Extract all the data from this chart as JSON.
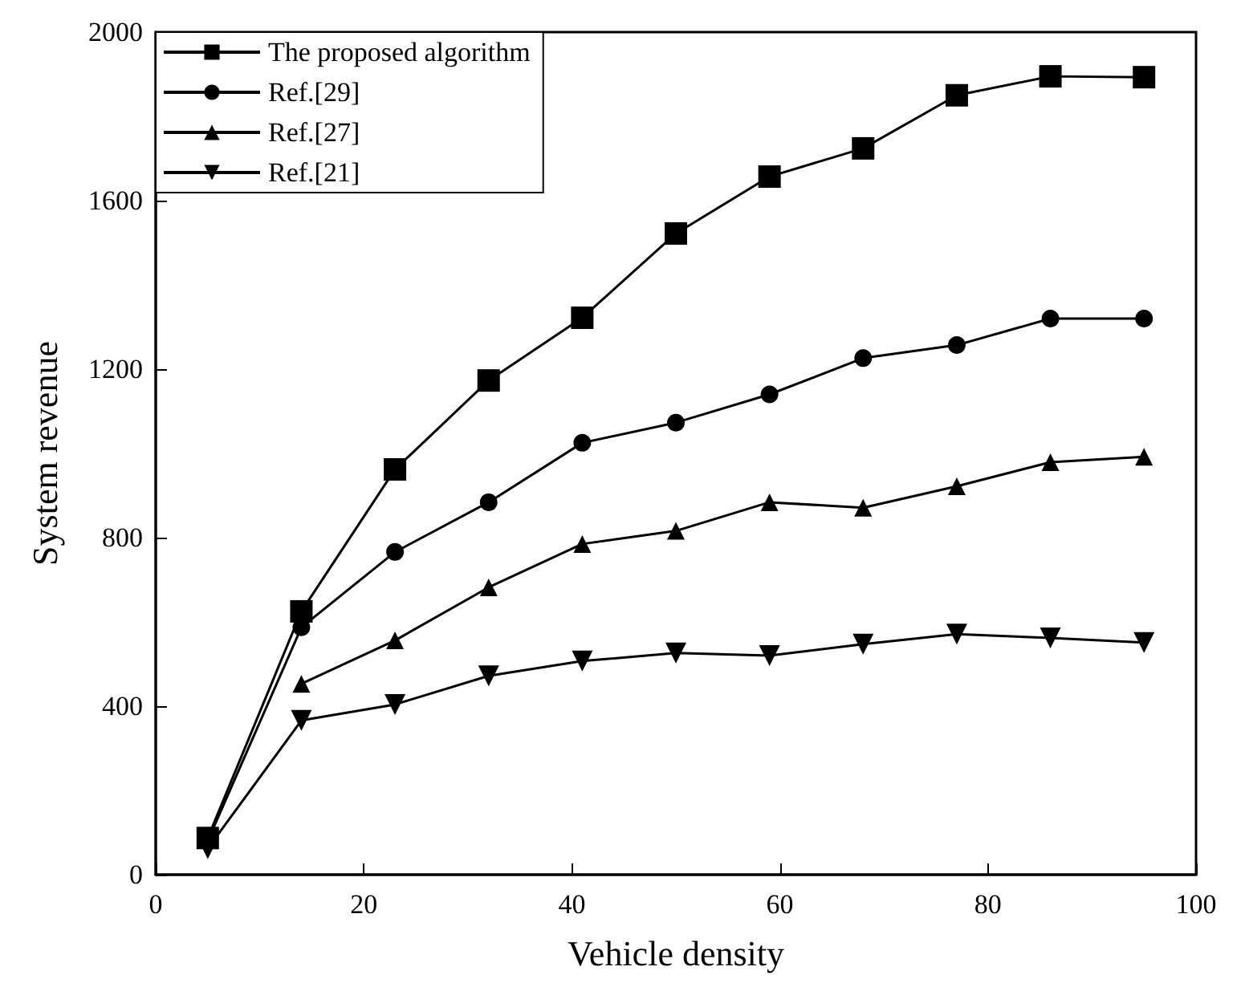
{
  "chart_data": {
    "type": "line",
    "xlabel": "Vehicle density",
    "ylabel": "System revenue",
    "x": [
      5,
      14,
      23,
      32,
      41,
      50,
      59,
      68,
      77,
      86,
      95
    ],
    "xlim": [
      0,
      100
    ],
    "xticks": [
      0,
      20,
      40,
      60,
      80,
      100
    ],
    "ylim": [
      0,
      2000
    ],
    "yticks": [
      0,
      400,
      800,
      1200,
      1600,
      2000
    ],
    "grid": false,
    "legend": "top left",
    "line_style": "solid",
    "series": [
      {
        "name": "The proposed algorithm",
        "color": "#000000",
        "marker": "square",
        "values": [
          87,
          625,
          962,
          1173,
          1322,
          1522,
          1657,
          1724,
          1850,
          1895,
          1893
        ]
      },
      {
        "name": "Ref.[29]",
        "color": "#000000",
        "marker": "circle",
        "values": [
          80,
          587,
          766,
          884,
          1025,
          1073,
          1140,
          1226,
          1257,
          1320,
          1320
        ]
      },
      {
        "name": "Ref.[27]",
        "color": "#000000",
        "marker": "triangle",
        "values": [
          null,
          453,
          556,
          682,
          785,
          816,
          884,
          871,
          922,
          979,
          992
        ]
      },
      {
        "name": "Ref.[21]",
        "color": "#000000",
        "marker": "triangle-down",
        "values": [
          62,
          366,
          404,
          472,
          507,
          526,
          520,
          547,
          571,
          562,
          551
        ]
      }
    ]
  }
}
